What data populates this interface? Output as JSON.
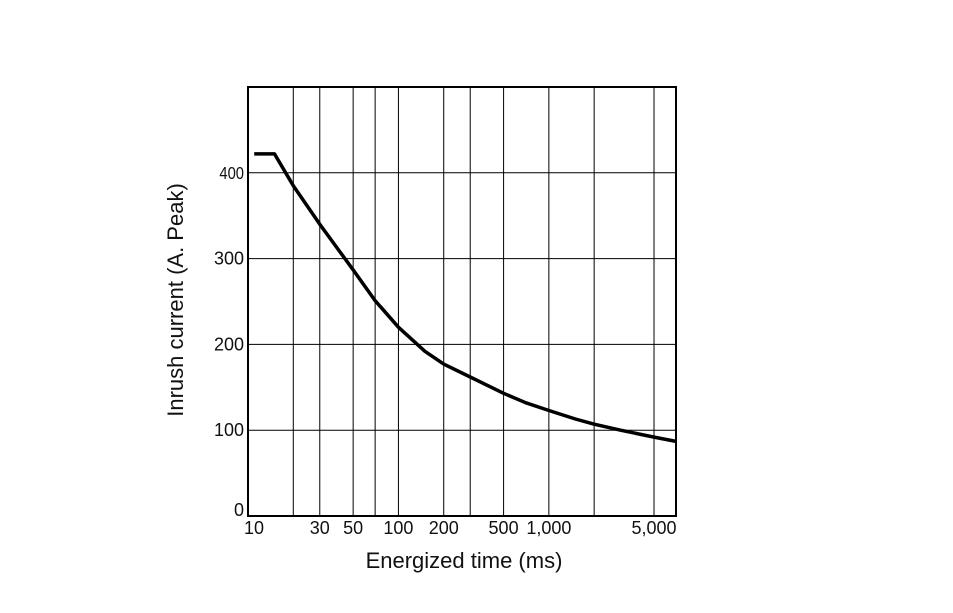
{
  "chart_data": {
    "type": "line",
    "title": "",
    "xlabel": "Energized time (ms)",
    "ylabel": "Inrush current (A. Peak)",
    "x_scale": "log",
    "xlim": [
      10,
      7000
    ],
    "ylim": [
      0,
      500
    ],
    "x_ticks": [
      {
        "value": 10,
        "label": "10"
      },
      {
        "value": 30,
        "label": "30"
      },
      {
        "value": 50,
        "label": "50"
      },
      {
        "value": 100,
        "label": "100"
      },
      {
        "value": 200,
        "label": "200"
      },
      {
        "value": 500,
        "label": "500"
      },
      {
        "value": 1000,
        "label": "1,000"
      },
      {
        "value": 5000,
        "label": "5,000"
      }
    ],
    "x_gridlines": [
      10,
      20,
      30,
      50,
      70,
      100,
      200,
      300,
      500,
      1000,
      2000,
      5000,
      7000
    ],
    "y_ticks": [
      {
        "value": 0,
        "label": "0"
      },
      {
        "value": 100,
        "label": "100"
      },
      {
        "value": 200,
        "label": "200"
      },
      {
        "value": 300,
        "label": "300"
      },
      {
        "value": 400,
        "label": "400"
      }
    ],
    "grid": true,
    "series": [
      {
        "x": [
          11,
          15,
          20,
          30,
          40,
          50,
          70,
          100,
          150,
          200,
          300,
          500,
          700,
          1000,
          1500,
          2000,
          3000,
          5000,
          7000
        ],
        "y": [
          422,
          422,
          385,
          340,
          310,
          287,
          251,
          220,
          192,
          177,
          162,
          143,
          132,
          123,
          113,
          107,
          100,
          92,
          87
        ]
      }
    ]
  }
}
